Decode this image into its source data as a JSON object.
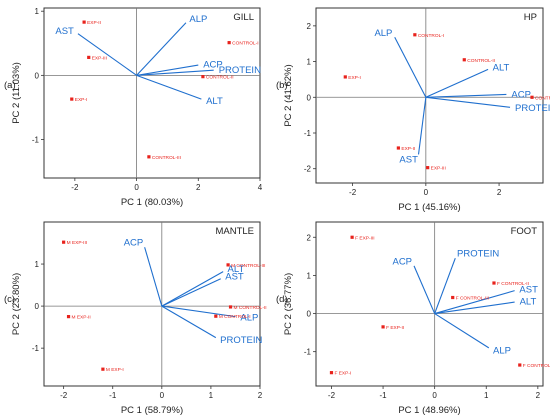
{
  "colors": {
    "vector": "#1f6fce",
    "point": "#e8221c",
    "axis": "#333333",
    "zero_line": "#777777",
    "text": "#222222"
  },
  "chart_data": [
    {
      "type": "scatter",
      "panel_label": "(a)",
      "title": "GILL",
      "xlabel": "PC 1 (80.03%)",
      "ylabel": "PC 2 (11.03%)",
      "xlim": [
        -3,
        4
      ],
      "ylim": [
        -1.6,
        1.05
      ],
      "xticks": [
        -2,
        0,
        2,
        4
      ],
      "yticks": [
        -1,
        0,
        1
      ],
      "points": [
        {
          "label": "EXP-II",
          "x": -1.7,
          "y": 0.83
        },
        {
          "label": "EXP-III",
          "x": -1.55,
          "y": 0.28
        },
        {
          "label": "EXP-I",
          "x": -2.1,
          "y": -0.37
        },
        {
          "label": "CONTROL-I",
          "x": 3.0,
          "y": 0.51
        },
        {
          "label": "CONTROL-II",
          "x": 2.15,
          "y": -0.02
        },
        {
          "label": "CONTROL-III",
          "x": 0.4,
          "y": -1.27
        }
      ],
      "vectors": [
        {
          "label": "ALP",
          "x": 1.6,
          "y": 0.82
        },
        {
          "label": "AST",
          "x": -1.9,
          "y": 0.65
        },
        {
          "label": "ACP",
          "x": 2.0,
          "y": 0.16
        },
        {
          "label": "PROTEIN",
          "x": 2.5,
          "y": 0.08
        },
        {
          "label": "ALT",
          "x": 2.1,
          "y": -0.37
        }
      ]
    },
    {
      "type": "scatter",
      "panel_label": "(b)",
      "title": "HP",
      "xlabel": "PC 1 (45.16%)",
      "ylabel": "PC 2 (41.62%)",
      "xlim": [
        -3,
        3.2
      ],
      "ylim": [
        -2.4,
        2.5
      ],
      "xticks": [
        -2,
        0,
        2
      ],
      "yticks": [
        -2,
        -1,
        0,
        1,
        2
      ],
      "points": [
        {
          "label": "CONTROL-I",
          "x": -0.3,
          "y": 1.75
        },
        {
          "label": "CONTROL-II",
          "x": 1.05,
          "y": 1.05
        },
        {
          "label": "CONTROL-III",
          "x": 2.9,
          "y": 0.0
        },
        {
          "label": "EXP-I",
          "x": -2.2,
          "y": 0.57
        },
        {
          "label": "EXP-II",
          "x": -0.75,
          "y": -1.42
        },
        {
          "label": "EXP-III",
          "x": 0.05,
          "y": -1.97
        }
      ],
      "vectors": [
        {
          "label": "ALP",
          "x": -0.85,
          "y": 1.68
        },
        {
          "label": "ALT",
          "x": 1.7,
          "y": 0.78
        },
        {
          "label": "ACP",
          "x": 2.2,
          "y": 0.08
        },
        {
          "label": "PROTEIN",
          "x": 2.3,
          "y": -0.28
        },
        {
          "label": "AST",
          "x": -0.2,
          "y": -1.6
        }
      ]
    },
    {
      "type": "scatter",
      "panel_label": "(c)",
      "title": "MANTLE",
      "xlabel": "PC 1 (58.79%)",
      "ylabel": "PC 2 (23.80%)",
      "xlim": [
        -2.4,
        2.0
      ],
      "ylim": [
        -1.9,
        2.0
      ],
      "xticks": [
        -2,
        -1,
        0,
        1,
        2
      ],
      "yticks": [
        -1,
        0,
        1
      ],
      "points": [
        {
          "label": "M EXP-III",
          "x": -2.0,
          "y": 1.52
        },
        {
          "label": "M EXP-II",
          "x": -1.9,
          "y": -0.25
        },
        {
          "label": "M EXP-I",
          "x": -1.2,
          "y": -1.5
        },
        {
          "label": "M CONTROL-III",
          "x": 1.35,
          "y": 0.98
        },
        {
          "label": "M CONTROL-II",
          "x": 1.4,
          "y": -0.02
        },
        {
          "label": "M CONTROL-I",
          "x": 1.1,
          "y": -0.24
        }
      ],
      "vectors": [
        {
          "label": "ACP",
          "x": -0.35,
          "y": 1.4
        },
        {
          "label": "ALT",
          "x": 1.25,
          "y": 0.82
        },
        {
          "label": "AST",
          "x": 1.2,
          "y": 0.65
        },
        {
          "label": "ALP",
          "x": 1.5,
          "y": -0.25
        },
        {
          "label": "PROTEIN",
          "x": 1.1,
          "y": -0.75
        }
      ]
    },
    {
      "type": "scatter",
      "panel_label": "(d)",
      "title": "FOOT",
      "xlabel": "PC 1 (48.96%)",
      "ylabel": "PC 2 (36.77%)",
      "xlim": [
        -2.3,
        2.1
      ],
      "ylim": [
        -1.9,
        2.4
      ],
      "xticks": [
        -2,
        -1,
        0,
        1,
        2
      ],
      "yticks": [
        -1,
        0,
        1,
        2
      ],
      "points": [
        {
          "label": "F EXP-III",
          "x": -1.6,
          "y": 2.0
        },
        {
          "label": "F EXP-II",
          "x": -1.0,
          "y": -0.35
        },
        {
          "label": "F EXP-I",
          "x": -2.0,
          "y": -1.55
        },
        {
          "label": "F CONTROL-II",
          "x": 1.15,
          "y": 0.8
        },
        {
          "label": "F CONTROL-III",
          "x": 0.35,
          "y": 0.42
        },
        {
          "label": "F CONTROL-I",
          "x": 1.65,
          "y": -1.35
        }
      ],
      "vectors": [
        {
          "label": "PROTEIN",
          "x": 0.4,
          "y": 1.45
        },
        {
          "label": "ACP",
          "x": -0.4,
          "y": 1.25
        },
        {
          "label": "AST",
          "x": 1.55,
          "y": 0.6
        },
        {
          "label": "ALT",
          "x": 1.55,
          "y": 0.3
        },
        {
          "label": "ALP",
          "x": 1.05,
          "y": -0.9
        }
      ]
    }
  ]
}
